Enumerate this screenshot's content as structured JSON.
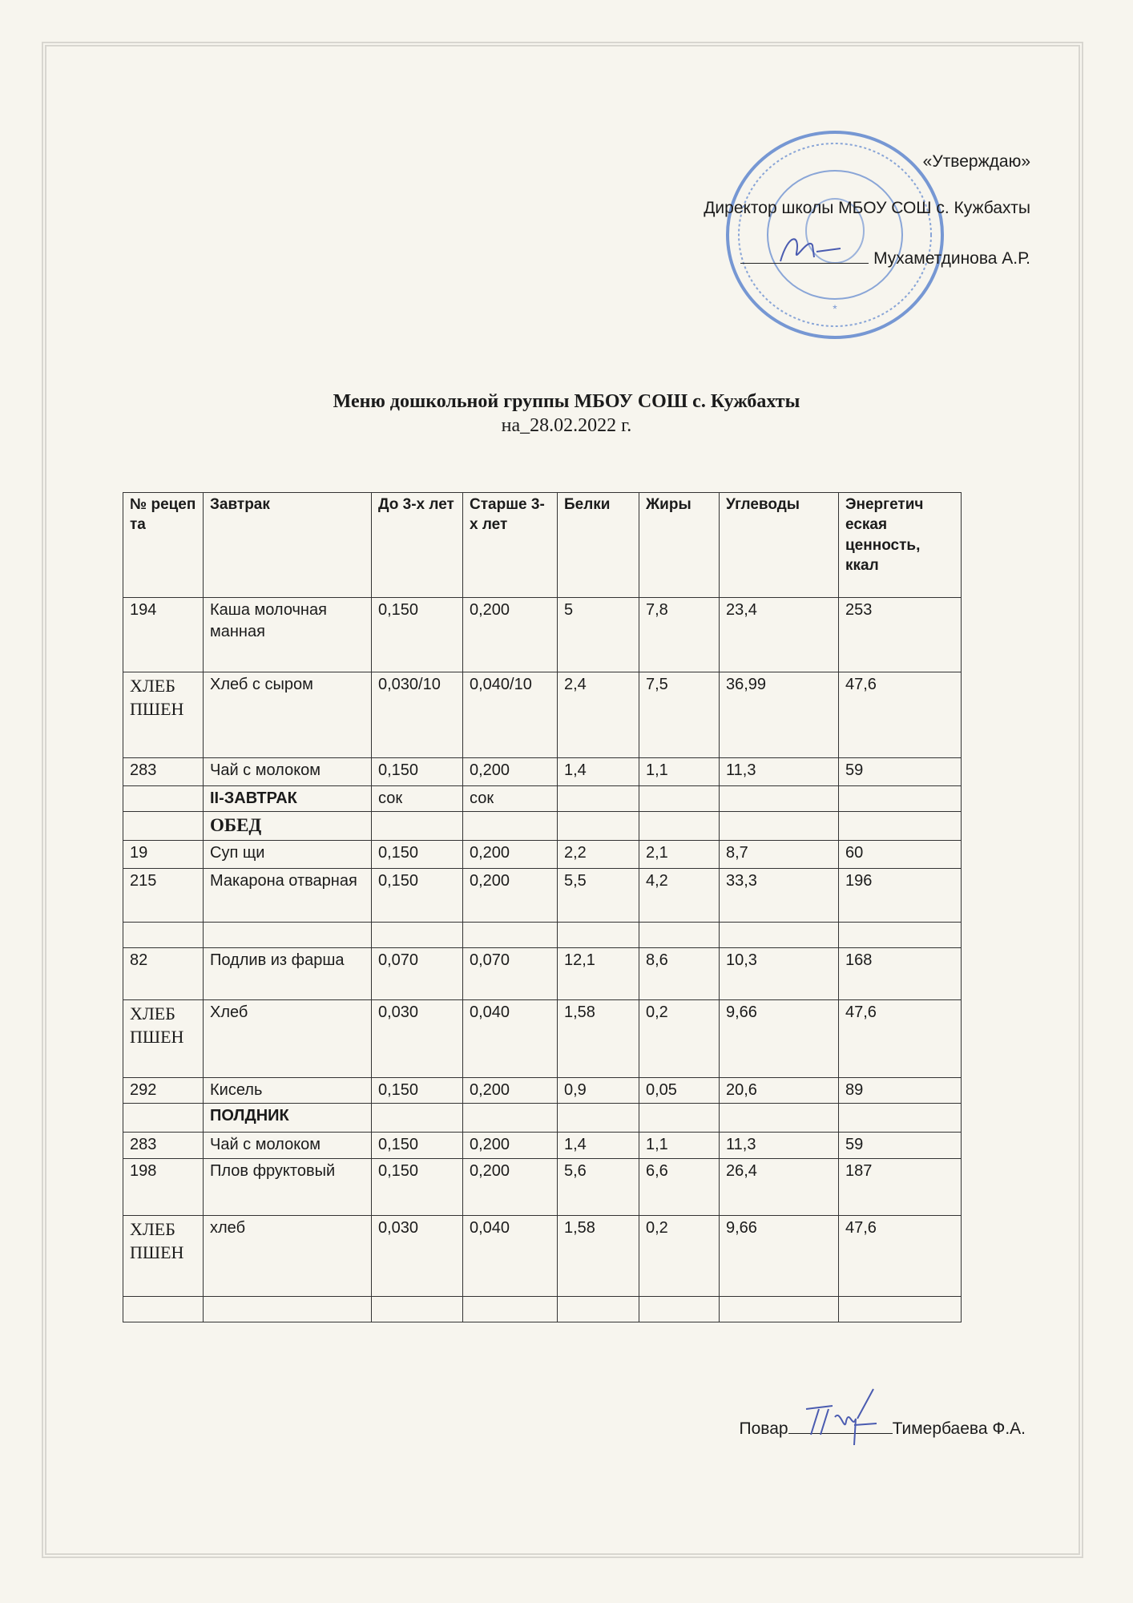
{
  "approval": {
    "heading": "«Утверждаю»",
    "position": "Директор школы МБОУ СОШ с. Кужбахты",
    "signatory": "Мухаметдинова А.Р."
  },
  "document": {
    "title": "Меню дошкольной группы  МБОУ СОШ с. Кужбахты",
    "date_line": "на_28.02.2022 г."
  },
  "table": {
    "columns": [
      "№ рецеп та",
      "Завтрак",
      "До 3-х лет",
      "Старше 3-х лет",
      "Белки",
      "Жиры",
      "Углеводы",
      "Энергетич еская ценность, ккал"
    ],
    "rows": [
      [
        "194",
        "Каша молочная манная",
        "0,150",
        "0,200",
        "5",
        "7,8",
        "23,4",
        "253"
      ],
      [
        "ХЛЕБ ПШЕН",
        "Хлеб с сыром",
        "0,030/10",
        "0,040/10",
        "2,4",
        "7,5",
        "36,99",
        "47,6"
      ],
      [
        "283",
        "Чай с молоком",
        "0,150",
        "0,200",
        "1,4",
        "1,1",
        "11,3",
        "59"
      ],
      [
        "",
        "II-ЗАВТРАК",
        "сок",
        "сок",
        "",
        "",
        "",
        ""
      ],
      [
        "",
        "ОБЕД",
        "",
        "",
        "",
        "",
        "",
        ""
      ],
      [
        "19",
        "Суп щи",
        "0,150",
        "0,200",
        "2,2",
        "2,1",
        "8,7",
        "60"
      ],
      [
        "215",
        "Макарона отварная",
        "0,150",
        "0,200",
        "5,5",
        "4,2",
        "33,3",
        "196"
      ],
      [
        "",
        "",
        "",
        "",
        "",
        "",
        "",
        ""
      ],
      [
        "82",
        "Подлив из фарша",
        "0,070",
        "0,070",
        "12,1",
        "8,6",
        "10,3",
        "168"
      ],
      [
        "ХЛЕБ ПШЕН",
        "Хлеб",
        "0,030",
        "0,040",
        "1,58",
        "0,2",
        "9,66",
        "47,6"
      ],
      [
        "292",
        "Кисель",
        "0,150",
        "0,200",
        "0,9",
        "0,05",
        "20,6",
        "89"
      ],
      [
        "",
        "ПОЛДНИК",
        "",
        "",
        "",
        "",
        "",
        ""
      ],
      [
        "283",
        "Чай с молоком",
        "0,150",
        "0,200",
        "1,4",
        "1,1",
        "11,3",
        "59"
      ],
      [
        "198",
        "Плов фруктовый",
        "0,150",
        "0,200",
        "5,6",
        "6,6",
        "26,4",
        "187"
      ],
      [
        "ХЛЕБ ПШЕН",
        "хлеб",
        "0,030",
        "0,040",
        "1,58",
        "0,2",
        "9,66",
        "47,6"
      ],
      [
        "",
        "",
        "",
        "",
        "",
        "",
        "",
        ""
      ]
    ]
  },
  "cook": {
    "label": "Повар",
    "name": "Тимербаева Ф.А."
  },
  "colors": {
    "stamp": "#3f6fc8",
    "signature": "#4a5bb0",
    "paper": "#f7f5ee"
  }
}
